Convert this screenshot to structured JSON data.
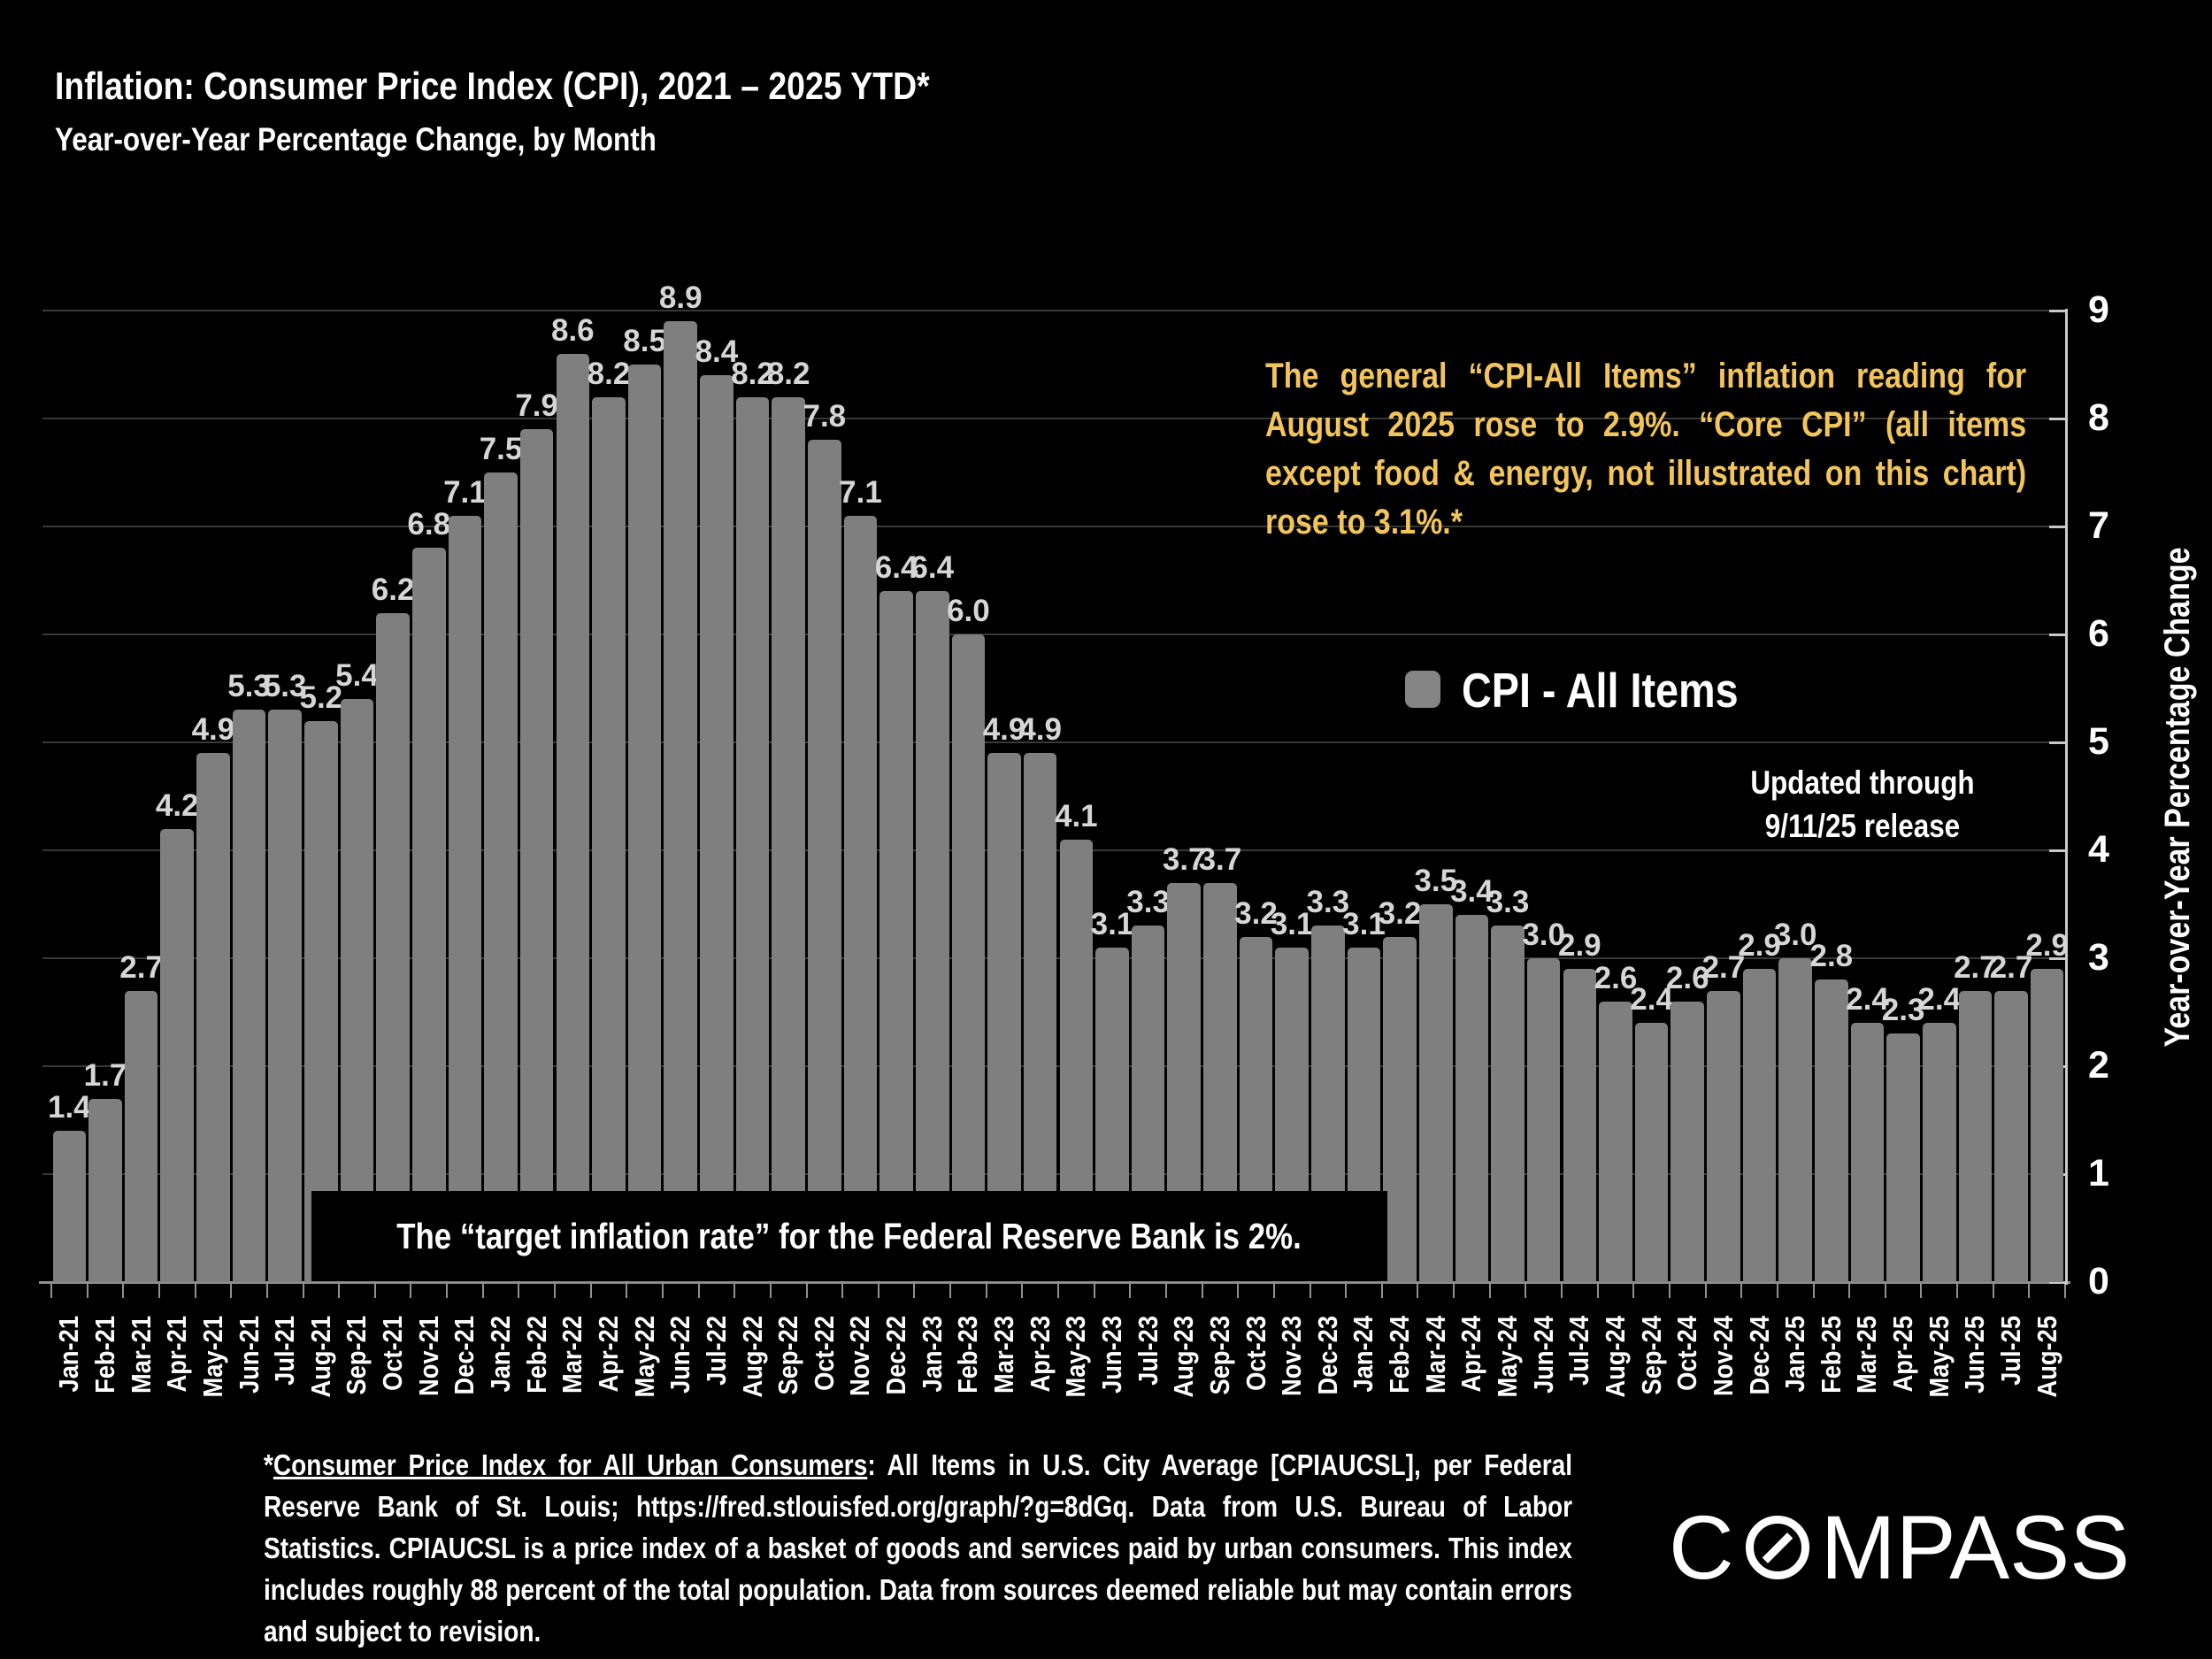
{
  "header": {
    "title": "Inflation: Consumer Price Index (CPI), 2021 – 2025 YTD*",
    "subtitle": "Year-over-Year Percentage Change, by Month"
  },
  "annotation": {
    "text": "The general “CPI-All Items” inflation reading for August 2025 rose to 2.9%. “Core CPI” (all items except food & energy, not illustrated on this chart) rose to 3.1%.*",
    "color": "#F2C45C"
  },
  "legend": {
    "label": "CPI - All Items",
    "swatch_color": "#858585"
  },
  "updated_note": {
    "line1": "Updated through",
    "line2": "9/11/25 release"
  },
  "target_note": {
    "text": "The “target inflation rate” for the Federal Reserve Bank is 2%."
  },
  "footnote": {
    "prefix": "*",
    "underlined": "Consumer Price Index for All Urban Consumers",
    "rest": ": All Items in U.S. City Average [CPIAUCSL], per Federal Reserve Bank of St. Louis; https://fred.stlouisfed.org/graph/?g=8dGq. Data from U.S. Bureau of Labor Statistics. CPIAUCSL is a price index of a basket of goods and services paid by urban consumers. This index includes roughly 88 percent of the total population. Data from sources deemed reliable but may contain errors and subject to revision."
  },
  "logo": {
    "c": "C",
    "rest": "MPASS"
  },
  "chart_data": {
    "type": "bar",
    "title": "Inflation: Consumer Price Index (CPI), 2021 – 2025 YTD*",
    "subtitle": "Year-over-Year Percentage Change, by Month",
    "categories": [
      "Jan-21",
      "Feb-21",
      "Mar-21",
      "Apr-21",
      "May-21",
      "Jun-21",
      "Jul-21",
      "Aug-21",
      "Sep-21",
      "Oct-21",
      "Nov-21",
      "Dec-21",
      "Jan-22",
      "Feb-22",
      "Mar-22",
      "Apr-22",
      "May-22",
      "Jun-22",
      "Jul-22",
      "Aug-22",
      "Sep-22",
      "Oct-22",
      "Nov-22",
      "Dec-22",
      "Jan-23",
      "Feb-23",
      "Mar-23",
      "Apr-23",
      "May-23",
      "Jun-23",
      "Jul-23",
      "Aug-23",
      "Sep-23",
      "Oct-23",
      "Nov-23",
      "Dec-23",
      "Jan-24",
      "Feb-24",
      "Mar-24",
      "Apr-24",
      "May-24",
      "Jun-24",
      "Jul-24",
      "Aug-24",
      "Sep-24",
      "Oct-24",
      "Nov-24",
      "Dec-24",
      "Jan-25",
      "Feb-25",
      "Mar-25",
      "Apr-25",
      "May-25",
      "Jun-25",
      "Jul-25",
      "Aug-25"
    ],
    "values": [
      1.4,
      1.7,
      2.7,
      4.2,
      4.9,
      5.3,
      5.3,
      5.2,
      5.4,
      6.2,
      6.8,
      7.1,
      7.5,
      7.9,
      8.6,
      8.2,
      8.5,
      8.9,
      8.4,
      8.2,
      8.2,
      7.8,
      7.1,
      6.4,
      6.4,
      6.0,
      4.9,
      4.9,
      4.1,
      3.1,
      3.3,
      3.7,
      3.7,
      3.2,
      3.1,
      3.3,
      3.1,
      3.2,
      3.5,
      3.4,
      3.3,
      3.0,
      2.9,
      2.6,
      2.4,
      2.6,
      2.7,
      2.9,
      3.0,
      2.8,
      2.4,
      2.3,
      2.4,
      2.7,
      2.7,
      2.9
    ],
    "xlabel": "",
    "ylabel": "Year-over-Year Percentage Change",
    "ylim": [
      0,
      9
    ],
    "yticks": [
      0,
      1,
      2,
      3,
      4,
      5,
      6,
      7,
      8,
      9
    ],
    "grid": true,
    "legend_position": "right-center",
    "bar_color": "#7f7f7f",
    "label_color": "#d6d6d6",
    "background_color": "#000000"
  }
}
